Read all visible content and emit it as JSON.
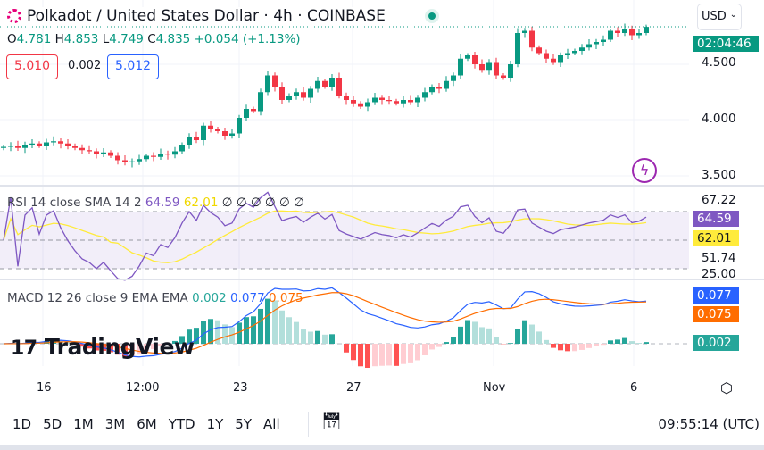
{
  "header": {
    "title": "Polkadot / United States Dollar · 4h · COINBASE",
    "currency": "USD"
  },
  "ohlc": {
    "o_label": "O",
    "o": "4.781",
    "h_label": "H",
    "h": "4.853",
    "l_label": "L",
    "l": "4.749",
    "c_label": "C",
    "c": "4.835",
    "change": "+0.054 (+1.13%)"
  },
  "spread": {
    "bid": "5.010",
    "spread": "0.002",
    "ask": "5.012"
  },
  "price_axis": {
    "countdown": "02:04:46",
    "labels": [
      "4.500",
      "4.000",
      "3.500"
    ]
  },
  "rsi": {
    "legend": "RSI 14 close SMA 14 2",
    "rsi": "64.59",
    "sma": "62.01",
    "extra": "∅ ∅ ∅ ∅ ∅ ∅",
    "axis": [
      "67.22",
      "51.74",
      "25.00"
    ]
  },
  "macd": {
    "legend": "MACD 12 26 close 9 EMA EMA",
    "hist": "0.002",
    "macd": "0.077",
    "signal": "0.075"
  },
  "time_axis": [
    "16",
    "12:00",
    "23",
    "27",
    "Nov",
    "6"
  ],
  "ranges": [
    "1D",
    "5D",
    "1M",
    "3M",
    "6M",
    "YTD",
    "1Y",
    "5Y",
    "All"
  ],
  "clock": "09:55:14 (UTC)",
  "logo": "TradingView",
  "colors": {
    "up": "#089981",
    "down": "#f23645",
    "rsi": "#7e57c2",
    "sma": "#ffeb3b",
    "macd": "#2962ff",
    "signal": "#ff6d00"
  },
  "chart_data": {
    "type": "candlestick",
    "symbol": "DOT/USD",
    "interval": "4h",
    "ylim": [
      3.35,
      4.9
    ],
    "closes": [
      3.76,
      3.77,
      3.75,
      3.78,
      3.79,
      3.77,
      3.8,
      3.81,
      3.79,
      3.77,
      3.75,
      3.73,
      3.72,
      3.7,
      3.71,
      3.68,
      3.64,
      3.62,
      3.63,
      3.65,
      3.68,
      3.67,
      3.7,
      3.69,
      3.72,
      3.78,
      3.85,
      3.82,
      3.95,
      3.92,
      3.9,
      3.86,
      3.88,
      4.02,
      4.1,
      4.08,
      4.25,
      4.4,
      4.3,
      4.18,
      4.22,
      4.25,
      4.2,
      4.28,
      4.35,
      4.3,
      4.38,
      4.22,
      4.18,
      4.15,
      4.12,
      4.16,
      4.2,
      4.18,
      4.17,
      4.15,
      4.18,
      4.16,
      4.2,
      4.25,
      4.3,
      4.28,
      4.35,
      4.4,
      4.55,
      4.58,
      4.5,
      4.45,
      4.52,
      4.4,
      4.38,
      4.5,
      4.78,
      4.8,
      4.65,
      4.6,
      4.55,
      4.52,
      4.58,
      4.6,
      4.62,
      4.65,
      4.68,
      4.7,
      4.72,
      4.8,
      4.78,
      4.82,
      4.76,
      4.78,
      4.835
    ]
  }
}
